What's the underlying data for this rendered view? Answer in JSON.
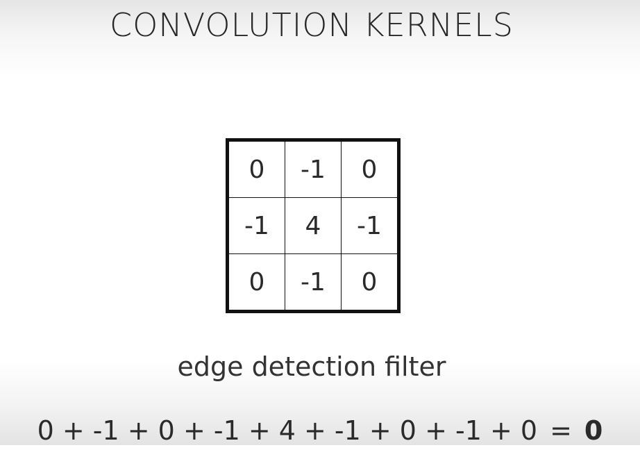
{
  "title": "CONVOLUTION KERNELS",
  "kernel": {
    "rows": [
      [
        "0",
        "-1",
        "0"
      ],
      [
        "-1",
        "4",
        "-1"
      ],
      [
        "0",
        "-1",
        "0"
      ]
    ]
  },
  "caption": "edge detection filter",
  "equation": {
    "expression": "0 + -1 + 0 + -1 + 4 + -1 + 0 + -1 + 0",
    "equals": "=",
    "result": "0"
  }
}
